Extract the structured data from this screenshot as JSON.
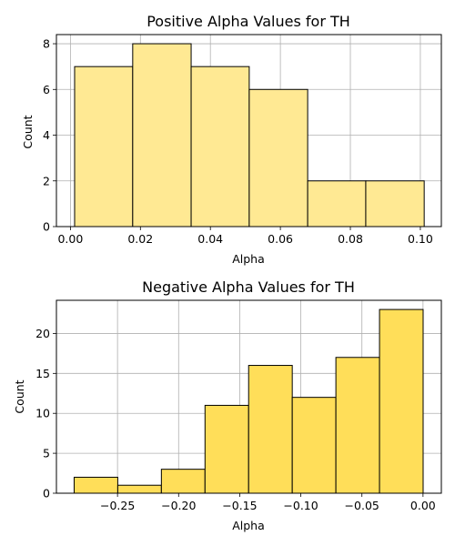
{
  "chart_data": [
    {
      "type": "bar",
      "subtype": "histogram",
      "title": "Positive Alpha Values for TH",
      "xlabel": "Alpha",
      "ylabel": "Count",
      "bin_edges": [
        0.0012,
        0.0178,
        0.0345,
        0.0511,
        0.0678,
        0.0844,
        0.1011
      ],
      "values": [
        7,
        8,
        7,
        6,
        2,
        2
      ],
      "xlim": [
        -0.004,
        0.106
      ],
      "ylim": [
        0,
        8.4
      ],
      "xticks": [
        0.0,
        0.02,
        0.04,
        0.06,
        0.08,
        0.1
      ],
      "xtick_labels": [
        "0.00",
        "0.02",
        "0.04",
        "0.06",
        "0.08",
        "0.10"
      ],
      "yticks": [
        0,
        2,
        4,
        6,
        8
      ],
      "ytick_labels": [
        "0",
        "2",
        "4",
        "6",
        "8"
      ],
      "grid": true,
      "bar_color": "#ffe993",
      "edge_color": "#000000"
    },
    {
      "type": "bar",
      "subtype": "histogram",
      "title": "Negative Alpha Values for TH",
      "xlabel": "Alpha",
      "ylabel": "Count",
      "bin_edges": [
        -0.2855,
        -0.2498,
        -0.2141,
        -0.1784,
        -0.1427,
        -0.107,
        -0.0713,
        -0.0356,
        0.0001
      ],
      "values": [
        2,
        1,
        3,
        11,
        16,
        12,
        17,
        23
      ],
      "xlim": [
        -0.3,
        0.015
      ],
      "ylim": [
        0,
        24.15
      ],
      "xticks": [
        -0.25,
        -0.2,
        -0.15,
        -0.1,
        -0.05,
        0.0
      ],
      "xtick_labels": [
        "−0.25",
        "−0.20",
        "−0.15",
        "−0.10",
        "−0.05",
        "0.00"
      ],
      "yticks": [
        0,
        5,
        10,
        15,
        20
      ],
      "ytick_labels": [
        "0",
        "5",
        "10",
        "15",
        "20"
      ],
      "grid": true,
      "bar_color": "#ffde59",
      "edge_color": "#000000"
    }
  ]
}
